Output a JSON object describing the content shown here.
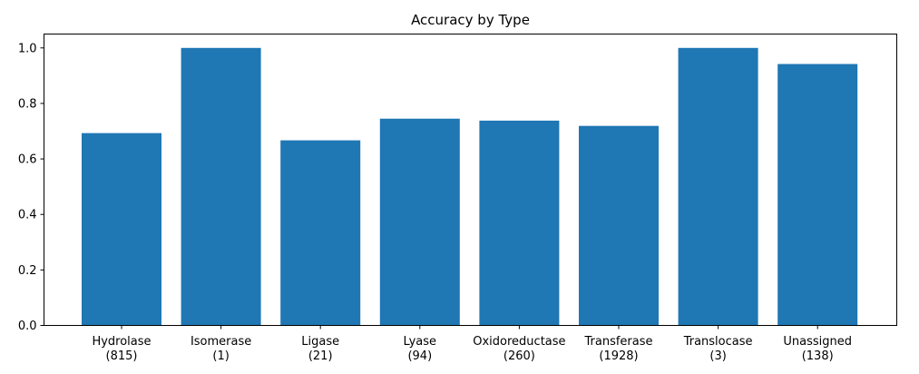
{
  "chart_data": {
    "type": "bar",
    "title": "Accuracy by Type",
    "xlabel": "",
    "ylabel": "",
    "categories": [
      [
        "Hydrolase",
        "(815)"
      ],
      [
        "Isomerase",
        "(1)"
      ],
      [
        "Ligase",
        "(21)"
      ],
      [
        "Lyase",
        "(94)"
      ],
      [
        "Oxidoreductase",
        "(260)"
      ],
      [
        "Transferase",
        "(1928)"
      ],
      [
        "Translocase",
        "(3)"
      ],
      [
        "Unassigned",
        "(138)"
      ]
    ],
    "values": [
      0.693,
      1.0,
      0.667,
      0.745,
      0.738,
      0.719,
      1.0,
      0.942
    ],
    "ylim": [
      0,
      1.05
    ],
    "yticks": [
      "0.0",
      "0.2",
      "0.4",
      "0.6",
      "0.8",
      "1.0"
    ],
    "bar_color": "#1f77b4",
    "grid": false,
    "legend": "none"
  }
}
